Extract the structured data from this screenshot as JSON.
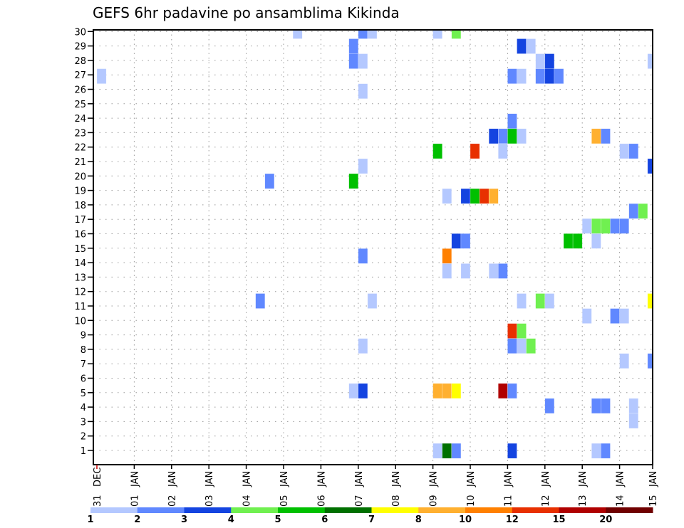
{
  "chart_data": {
    "type": "heatmap",
    "title": "GEFS 6hr padavine po ansamblima Kikinda",
    "ylabel": "",
    "xlabel": "",
    "y_ticks": [
      "1",
      "2",
      "3",
      "4",
      "5",
      "6",
      "7",
      "8",
      "9",
      "10",
      "11",
      "12",
      "13",
      "14",
      "15",
      "16",
      "17",
      "18",
      "19",
      "20",
      "21",
      "22",
      "23",
      "24",
      "25",
      "26",
      "27",
      "28",
      "29",
      "30"
    ],
    "x_ticks": [
      {
        "day": "31",
        "mon": "DEC"
      },
      {
        "day": "01",
        "mon": "JAN"
      },
      {
        "day": "02",
        "mon": "JAN"
      },
      {
        "day": "03",
        "mon": "JAN"
      },
      {
        "day": "04",
        "mon": "JAN"
      },
      {
        "day": "05",
        "mon": "JAN"
      },
      {
        "day": "06",
        "mon": "JAN"
      },
      {
        "day": "07",
        "mon": "JAN"
      },
      {
        "day": "08",
        "mon": "JAN"
      },
      {
        "day": "09",
        "mon": "JAN"
      },
      {
        "day": "10",
        "mon": "JAN"
      },
      {
        "day": "11",
        "mon": "JAN"
      },
      {
        "day": "12",
        "mon": "JAN"
      },
      {
        "day": "13",
        "mon": "JAN"
      },
      {
        "day": "14",
        "mon": "JAN"
      },
      {
        "day": "15",
        "mon": "JAN"
      }
    ],
    "time_step_hours": 6,
    "grid": true,
    "legend_placement": "bottom",
    "levels": [
      {
        "label": "1",
        "color": "#b4c8ff"
      },
      {
        "label": "2",
        "color": "#6088ff"
      },
      {
        "label": "3",
        "color": "#1444e0"
      },
      {
        "label": "4",
        "color": "#70f050"
      },
      {
        "label": "5",
        "color": "#00c000"
      },
      {
        "label": "6",
        "color": "#007000"
      },
      {
        "label": "7",
        "color": "#ffff00"
      },
      {
        "label": "8",
        "color": "#ffb030"
      },
      {
        "label": "10",
        "color": "#ff8000"
      },
      {
        "label": "12",
        "color": "#e83000"
      },
      {
        "label": "15",
        "color": "#b00000"
      },
      {
        "label": "20",
        "color": "#700000"
      }
    ],
    "cells_format": [
      "member",
      "time_step_from_31DEC_00Z",
      "level_index"
    ],
    "cells": [
      [
        30,
        21,
        0
      ],
      [
        30,
        28,
        1
      ],
      [
        30,
        29,
        0
      ],
      [
        30,
        36,
        0
      ],
      [
        30,
        38,
        3
      ],
      [
        29,
        27,
        1
      ],
      [
        29,
        45,
        2
      ],
      [
        29,
        46,
        0
      ],
      [
        28,
        27,
        1
      ],
      [
        28,
        28,
        0
      ],
      [
        28,
        47,
        0
      ],
      [
        28,
        48,
        2
      ],
      [
        28,
        59,
        0
      ],
      [
        27,
        0,
        0
      ],
      [
        27,
        44,
        1
      ],
      [
        27,
        45,
        0
      ],
      [
        27,
        47,
        1
      ],
      [
        27,
        48,
        2
      ],
      [
        27,
        49,
        1
      ],
      [
        26,
        28,
        0
      ],
      [
        24,
        44,
        1
      ],
      [
        23,
        42,
        2
      ],
      [
        23,
        43,
        1
      ],
      [
        23,
        44,
        4
      ],
      [
        23,
        45,
        0
      ],
      [
        23,
        53,
        7
      ],
      [
        23,
        54,
        1
      ],
      [
        22,
        36,
        4
      ],
      [
        22,
        40,
        9
      ],
      [
        22,
        43,
        0
      ],
      [
        22,
        56,
        0
      ],
      [
        22,
        57,
        1
      ],
      [
        21,
        28,
        0
      ],
      [
        21,
        59,
        2
      ],
      [
        20,
        18,
        1
      ],
      [
        20,
        27,
        4
      ],
      [
        19,
        37,
        0
      ],
      [
        19,
        39,
        2
      ],
      [
        19,
        40,
        4
      ],
      [
        19,
        41,
        9
      ],
      [
        19,
        42,
        7
      ],
      [
        18,
        57,
        1
      ],
      [
        18,
        58,
        3
      ],
      [
        17,
        52,
        0
      ],
      [
        17,
        53,
        3
      ],
      [
        17,
        54,
        3
      ],
      [
        17,
        55,
        1
      ],
      [
        17,
        56,
        1
      ],
      [
        16,
        38,
        2
      ],
      [
        16,
        39,
        1
      ],
      [
        16,
        50,
        4
      ],
      [
        16,
        51,
        4
      ],
      [
        16,
        53,
        0
      ],
      [
        15,
        28,
        1
      ],
      [
        15,
        37,
        8
      ],
      [
        14,
        37,
        0
      ],
      [
        14,
        39,
        0
      ],
      [
        14,
        42,
        0
      ],
      [
        14,
        43,
        1
      ],
      [
        12,
        17,
        1
      ],
      [
        12,
        29,
        0
      ],
      [
        12,
        45,
        0
      ],
      [
        12,
        47,
        3
      ],
      [
        12,
        48,
        0
      ],
      [
        12,
        59,
        6
      ],
      [
        11,
        52,
        0
      ],
      [
        11,
        55,
        1
      ],
      [
        11,
        56,
        0
      ],
      [
        10,
        44,
        9
      ],
      [
        10,
        45,
        3
      ],
      [
        9,
        28,
        0
      ],
      [
        9,
        44,
        1
      ],
      [
        9,
        45,
        0
      ],
      [
        9,
        46,
        3
      ],
      [
        8,
        56,
        0
      ],
      [
        8,
        59,
        1
      ],
      [
        6,
        27,
        0
      ],
      [
        6,
        28,
        2
      ],
      [
        6,
        36,
        7
      ],
      [
        6,
        37,
        7
      ],
      [
        6,
        38,
        6
      ],
      [
        6,
        43,
        10
      ],
      [
        6,
        44,
        1
      ],
      [
        5,
        48,
        1
      ],
      [
        5,
        53,
        1
      ],
      [
        5,
        54,
        1
      ],
      [
        5,
        57,
        0
      ],
      [
        4,
        57,
        0
      ],
      [
        2,
        36,
        0
      ],
      [
        2,
        37,
        5
      ],
      [
        2,
        38,
        1
      ],
      [
        2,
        44,
        2
      ],
      [
        2,
        53,
        0
      ],
      [
        2,
        54,
        1
      ]
    ]
  }
}
